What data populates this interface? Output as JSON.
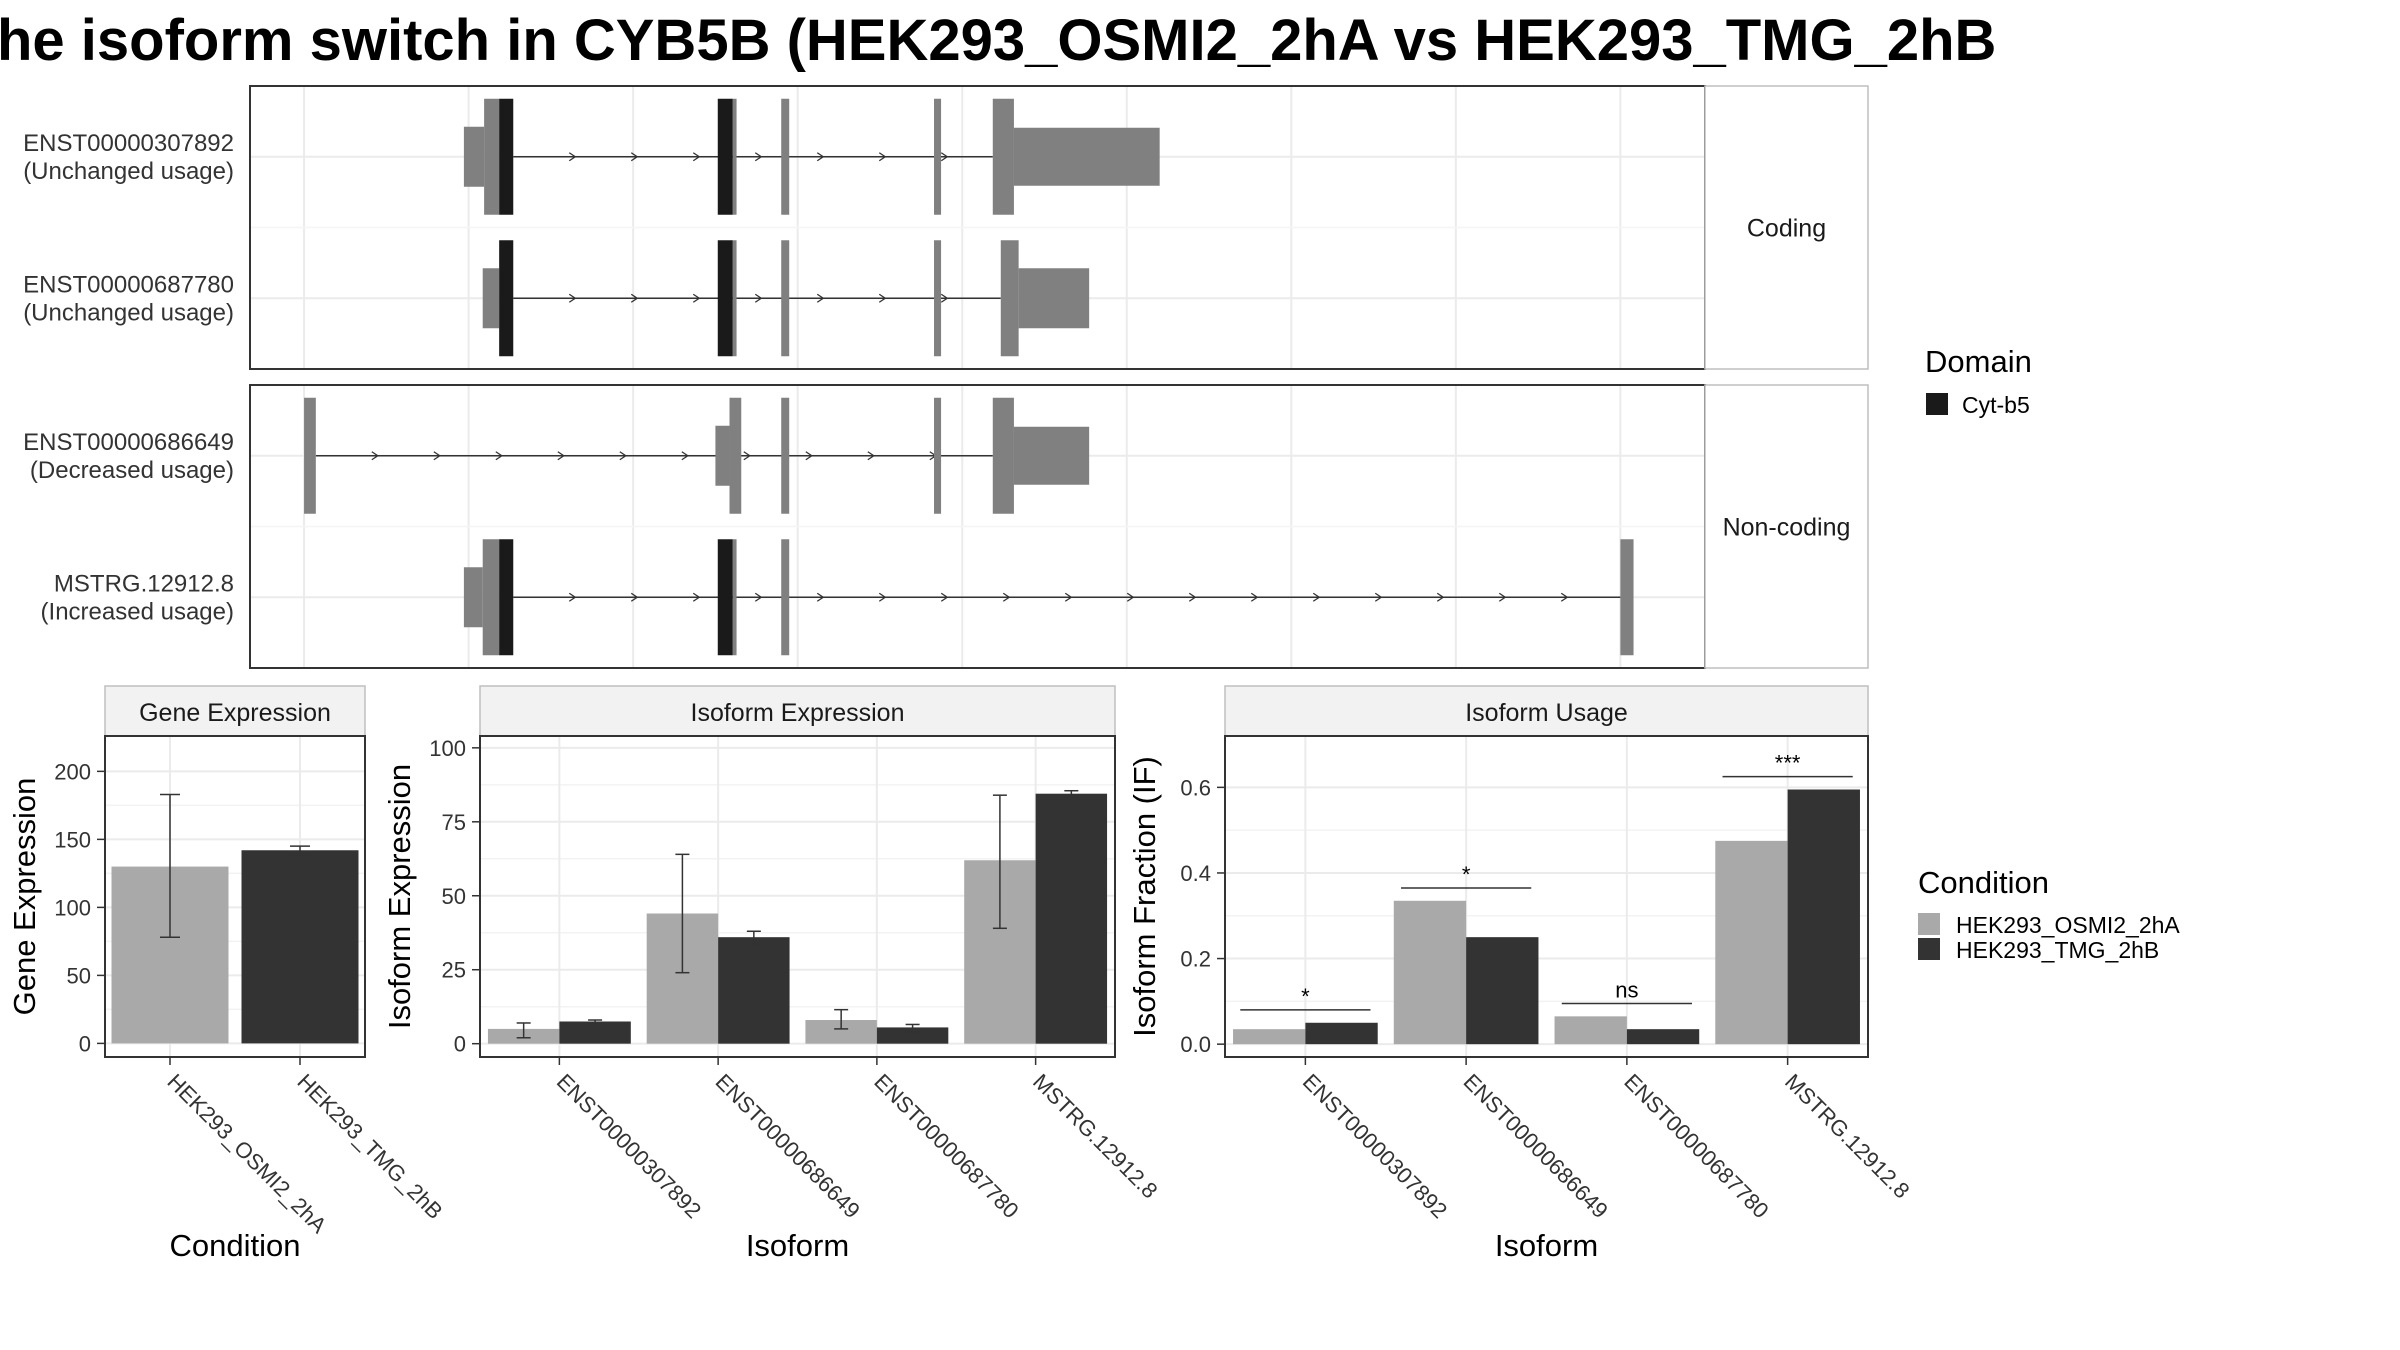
{
  "title": "he isoform switch in CYB5B (HEK293_OSMI2_2hA vs HEK293_TMG_2hB",
  "colors": {
    "exon": "#808080",
    "domain": "#1a1a1a",
    "cond_a": "#a9a9a9",
    "cond_b": "#333333",
    "grid": "#ebebeb",
    "strip": "#f2f2f2",
    "border": "#333333"
  },
  "structure": {
    "panels": [
      {
        "strip": "Coding",
        "transcripts": [
          {
            "id": "ENST00000307892",
            "usage": "(Unchanged usage)",
            "exons": [
              [
                140,
                183,
                "exon"
              ],
              [
                183,
                215,
                "exon"
              ],
              [
                215,
                245,
                "domain"
              ],
              [
                680,
                712,
                "domain"
              ],
              [
                712,
                720,
                "exon"
              ],
              [
                815,
                832,
                "exon"
              ],
              [
                1140,
                1155,
                "exon"
              ],
              [
                1265,
                1310,
                "exon"
              ],
              [
                1310,
                1620,
                "exon"
              ]
            ],
            "intron": [
              245,
              1265
            ]
          },
          {
            "id": "ENST00000687780",
            "usage": "(Unchanged usage)",
            "exons": [
              [
                180,
                215,
                "exon"
              ],
              [
                215,
                245,
                "domain"
              ],
              [
                680,
                712,
                "domain"
              ],
              [
                712,
                720,
                "exon"
              ],
              [
                815,
                832,
                "exon"
              ],
              [
                1140,
                1155,
                "exon"
              ],
              [
                1282,
                1320,
                "exon"
              ],
              [
                1320,
                1470,
                "exon"
              ]
            ],
            "intron": [
              245,
              1282
            ]
          }
        ]
      },
      {
        "strip": "Non-coding",
        "transcripts": [
          {
            "id": "ENST00000686649",
            "usage": "(Decreased usage)",
            "exons": [
              [
                -200,
                -175,
                "exon"
              ],
              [
                675,
                705,
                "exon"
              ],
              [
                705,
                730,
                "exon"
              ],
              [
                815,
                832,
                "exon"
              ],
              [
                1140,
                1155,
                "exon"
              ],
              [
                1265,
                1310,
                "exon"
              ],
              [
                1310,
                1470,
                "exon"
              ]
            ],
            "intron": [
              -175,
              1265
            ]
          },
          {
            "id": "MSTRG.12912.8",
            "usage": "(Increased usage)",
            "exons": [
              [
                140,
                180,
                "exon"
              ],
              [
                180,
                215,
                "exon"
              ],
              [
                215,
                245,
                "domain"
              ],
              [
                680,
                712,
                "domain"
              ],
              [
                712,
                720,
                "exon"
              ],
              [
                815,
                832,
                "exon"
              ],
              [
                2600,
                2628,
                "exon"
              ]
            ],
            "intron": [
              245,
              2600
            ]
          }
        ]
      }
    ],
    "x_range": [
      -315,
      2780
    ]
  },
  "legend_domain": {
    "title": "Domain",
    "items": [
      "Cyt-b5"
    ]
  },
  "legend_condition": {
    "title": "Condition",
    "items": [
      "HEK293_OSMI2_2hA",
      "HEK293_TMG_2hB"
    ]
  },
  "chart_data": [
    {
      "type": "bar",
      "title": "Gene Expression",
      "xlabel": "Condition",
      "ylabel": "Gene Expression",
      "categories": [
        "HEK293_OSMI2_2hA",
        "HEK293_TMG_2hB"
      ],
      "values": [
        130,
        142
      ],
      "error": [
        [
          78,
          183
        ],
        [
          139,
          145
        ]
      ],
      "ylim": [
        -10,
        226
      ],
      "yticks": [
        0,
        50,
        100,
        150,
        200
      ]
    },
    {
      "type": "bar",
      "title": "Isoform Expression",
      "xlabel": "Isoform",
      "ylabel": "Isoform Expression",
      "categories": [
        "ENST00000307892",
        "ENST00000686649",
        "ENST00000687780",
        "MSTRG.12912.8"
      ],
      "series": [
        {
          "name": "HEK293_OSMI2_2hA",
          "values": [
            5,
            44,
            8,
            62
          ],
          "error": [
            [
              2,
              7
            ],
            [
              24,
              64
            ],
            [
              5,
              11.5
            ],
            [
              39,
              84
            ]
          ]
        },
        {
          "name": "HEK293_TMG_2hB",
          "values": [
            7.5,
            36,
            5.5,
            84.5
          ],
          "error": [
            [
              6.5,
              8
            ],
            [
              33.5,
              38
            ],
            [
              4,
              6.5
            ],
            [
              83.5,
              85.5
            ]
          ]
        }
      ],
      "ylim": [
        -4.5,
        104
      ],
      "yticks": [
        0,
        25,
        50,
        75,
        100
      ]
    },
    {
      "type": "bar",
      "title": "Isoform Usage",
      "xlabel": "Isoform",
      "ylabel": "Isoform Fraction (IF)",
      "categories": [
        "ENST00000307892",
        "ENST00000686649",
        "ENST00000687780",
        "MSTRG.12912.8"
      ],
      "series": [
        {
          "name": "HEK293_OSMI2_2hA",
          "values": [
            0.035,
            0.335,
            0.065,
            0.475
          ]
        },
        {
          "name": "HEK293_TMG_2hB",
          "values": [
            0.05,
            0.25,
            0.035,
            0.595
          ]
        }
      ],
      "significance": [
        "*",
        "*",
        "ns",
        "***"
      ],
      "sig_y": [
        0.08,
        0.365,
        0.095,
        0.625
      ],
      "ylim": [
        -0.03,
        0.72
      ],
      "yticks": [
        0.0,
        0.2,
        0.4,
        0.6
      ],
      "ytick_labels": [
        "0.0",
        "0.2",
        "0.4",
        "0.6"
      ]
    }
  ]
}
